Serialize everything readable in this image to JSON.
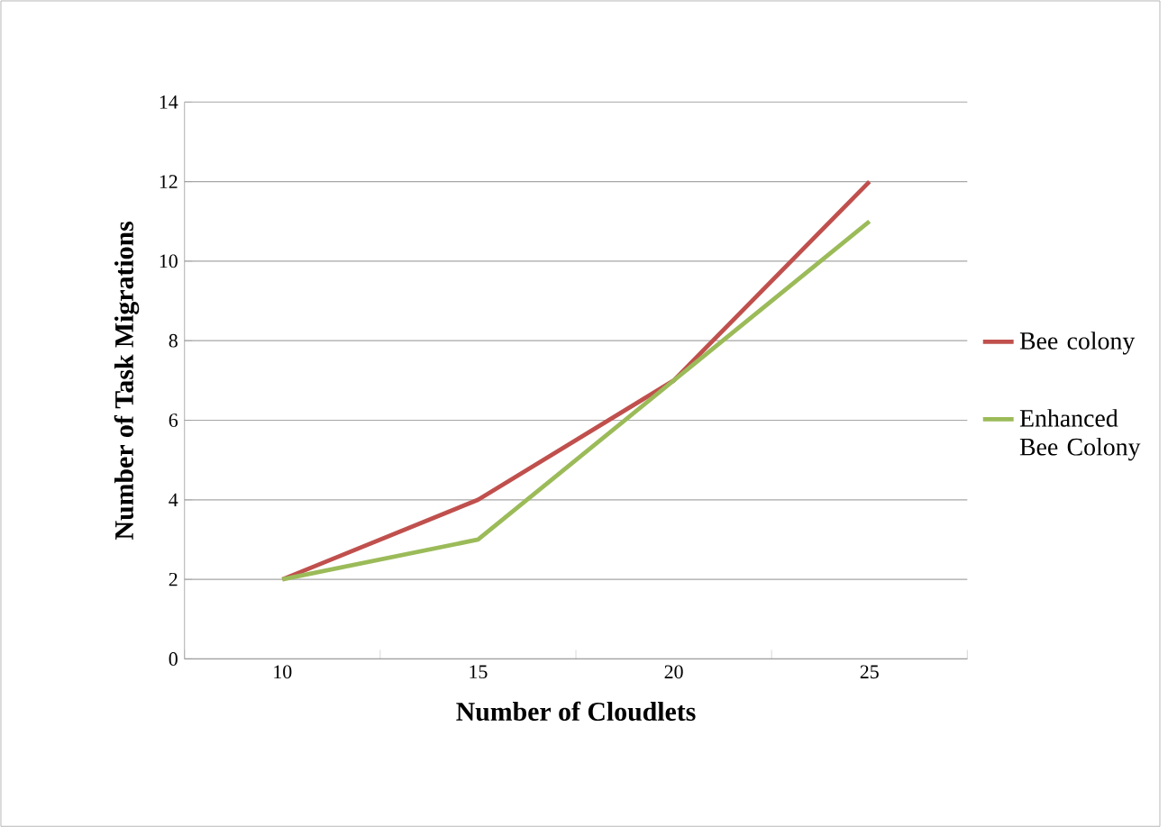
{
  "chart_data": {
    "type": "line",
    "xlabel": "Number of Cloudlets",
    "ylabel": "Number of Task Migrations",
    "categories": [
      "10",
      "15",
      "20",
      "25"
    ],
    "series": [
      {
        "name": "Bee colony",
        "color": "#c0504d",
        "values": [
          2,
          4,
          7,
          12
        ]
      },
      {
        "name": "Enhanced Bee Colony",
        "color": "#9bbb59",
        "values": [
          2,
          3,
          7,
          11
        ]
      }
    ],
    "ylim": [
      0,
      14
    ],
    "yticks": [
      0,
      2,
      4,
      6,
      8,
      10,
      12,
      14
    ],
    "grid": "y",
    "legend": "right",
    "marker": "none",
    "line_style": "solid"
  }
}
